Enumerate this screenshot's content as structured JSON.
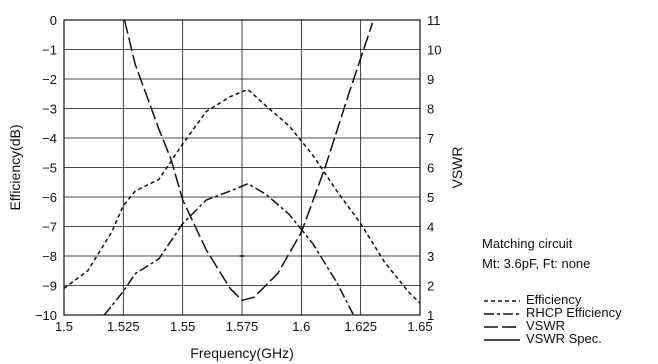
{
  "chart_data": {
    "type": "line",
    "xlabel": "Frequency(GHz)",
    "ylabel_left": "Efficiency(dB)",
    "ylabel_right": "VSWR",
    "xlim": [
      1.5,
      1.65
    ],
    "ylim_left": [
      -10,
      0
    ],
    "ylim_right": [
      1,
      11
    ],
    "x_ticks": [
      "1.5",
      "1.525",
      "1.55",
      "1.575",
      "1.6",
      "1.625",
      "1.65"
    ],
    "y_ticks_left": [
      "0",
      "−1",
      "−2",
      "−3",
      "−4",
      "−5",
      "−6",
      "−7",
      "−8",
      "−9",
      "−10"
    ],
    "y_ticks_right": [
      "11",
      "10",
      "9",
      "8",
      "7",
      "6",
      "5",
      "4",
      "3",
      "2",
      "1"
    ],
    "grid": true,
    "series": [
      {
        "name": "Efficiency",
        "axis": "left",
        "dash": "4,3",
        "x": [
          1.5,
          1.51,
          1.52,
          1.525,
          1.53,
          1.54,
          1.55,
          1.56,
          1.57,
          1.5775,
          1.585,
          1.595,
          1.605,
          1.615,
          1.625,
          1.635,
          1.645,
          1.65
        ],
        "y": [
          -9.1,
          -8.5,
          -7.2,
          -6.3,
          -5.8,
          -5.4,
          -4.2,
          -3.1,
          -2.6,
          -2.35,
          -2.9,
          -3.6,
          -4.6,
          -5.8,
          -6.9,
          -8.2,
          -9.2,
          -9.6
        ]
      },
      {
        "name": "RHCP Efficiency",
        "axis": "left",
        "dash": "10,3,3,3",
        "x": [
          1.517,
          1.525,
          1.53,
          1.54,
          1.55,
          1.56,
          1.57,
          1.5775,
          1.585,
          1.595,
          1.605,
          1.615,
          1.622
        ],
        "y": [
          -10,
          -9.2,
          -8.6,
          -8.1,
          -6.9,
          -6.1,
          -5.8,
          -5.55,
          -5.9,
          -6.6,
          -7.6,
          -8.9,
          -10
        ]
      },
      {
        "name": "VSWR",
        "axis": "right",
        "dash": "14,4",
        "x": [
          1.5255,
          1.53,
          1.54,
          1.545,
          1.55,
          1.56,
          1.57,
          1.575,
          1.58,
          1.59,
          1.6,
          1.61,
          1.62,
          1.63
        ],
        "y": [
          11,
          9.5,
          7.3,
          6.3,
          4.9,
          3.2,
          1.9,
          1.5,
          1.6,
          2.4,
          3.8,
          6.0,
          8.5,
          10.9
        ]
      },
      {
        "name": "VSWR Spec.",
        "axis": "right",
        "dash": "",
        "x": [
          1.574,
          1.576
        ],
        "y": [
          3,
          3
        ]
      }
    ]
  },
  "annotation": {
    "title": "Matching circuit",
    "detail": "Mt: 3.6pF, Ft: none"
  }
}
